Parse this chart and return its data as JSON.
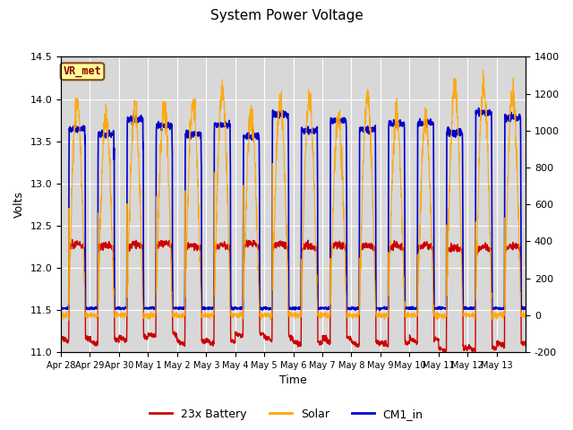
{
  "title": "System Power Voltage",
  "xlabel": "Time",
  "ylabel_left": "Volts",
  "ylim_left": [
    11.0,
    14.5
  ],
  "ylim_right": [
    -200,
    1400
  ],
  "background_color": "#ffffff",
  "plot_bg_color": "#d8d8d8",
  "grid_color": "#ffffff",
  "annotation_text": "VR_met",
  "annotation_bg": "#ffff99",
  "annotation_border": "#8b4513",
  "annotation_text_color": "#8b0000",
  "series": {
    "battery": {
      "color": "#cc0000",
      "label": "23x Battery",
      "lw": 1.0
    },
    "solar": {
      "color": "#ffa500",
      "label": "Solar",
      "lw": 0.8
    },
    "cm1": {
      "color": "#0000cc",
      "label": "CM1_in",
      "lw": 1.2
    }
  },
  "xtick_labels": [
    "Apr 28",
    "Apr 29",
    "Apr 30",
    "May 1",
    "May 2",
    "May 3",
    "May 4",
    "May 5",
    "May 6",
    "May 7",
    "May 8",
    "May 9",
    "May 10",
    "May 11",
    "May 12",
    "May 13"
  ],
  "yticks_left": [
    11.0,
    11.5,
    12.0,
    12.5,
    13.0,
    13.5,
    14.0,
    14.5
  ],
  "yticks_right": [
    -200,
    0,
    200,
    400,
    600,
    800,
    1000,
    1200,
    1400
  ],
  "n_days": 16,
  "seed": 42
}
